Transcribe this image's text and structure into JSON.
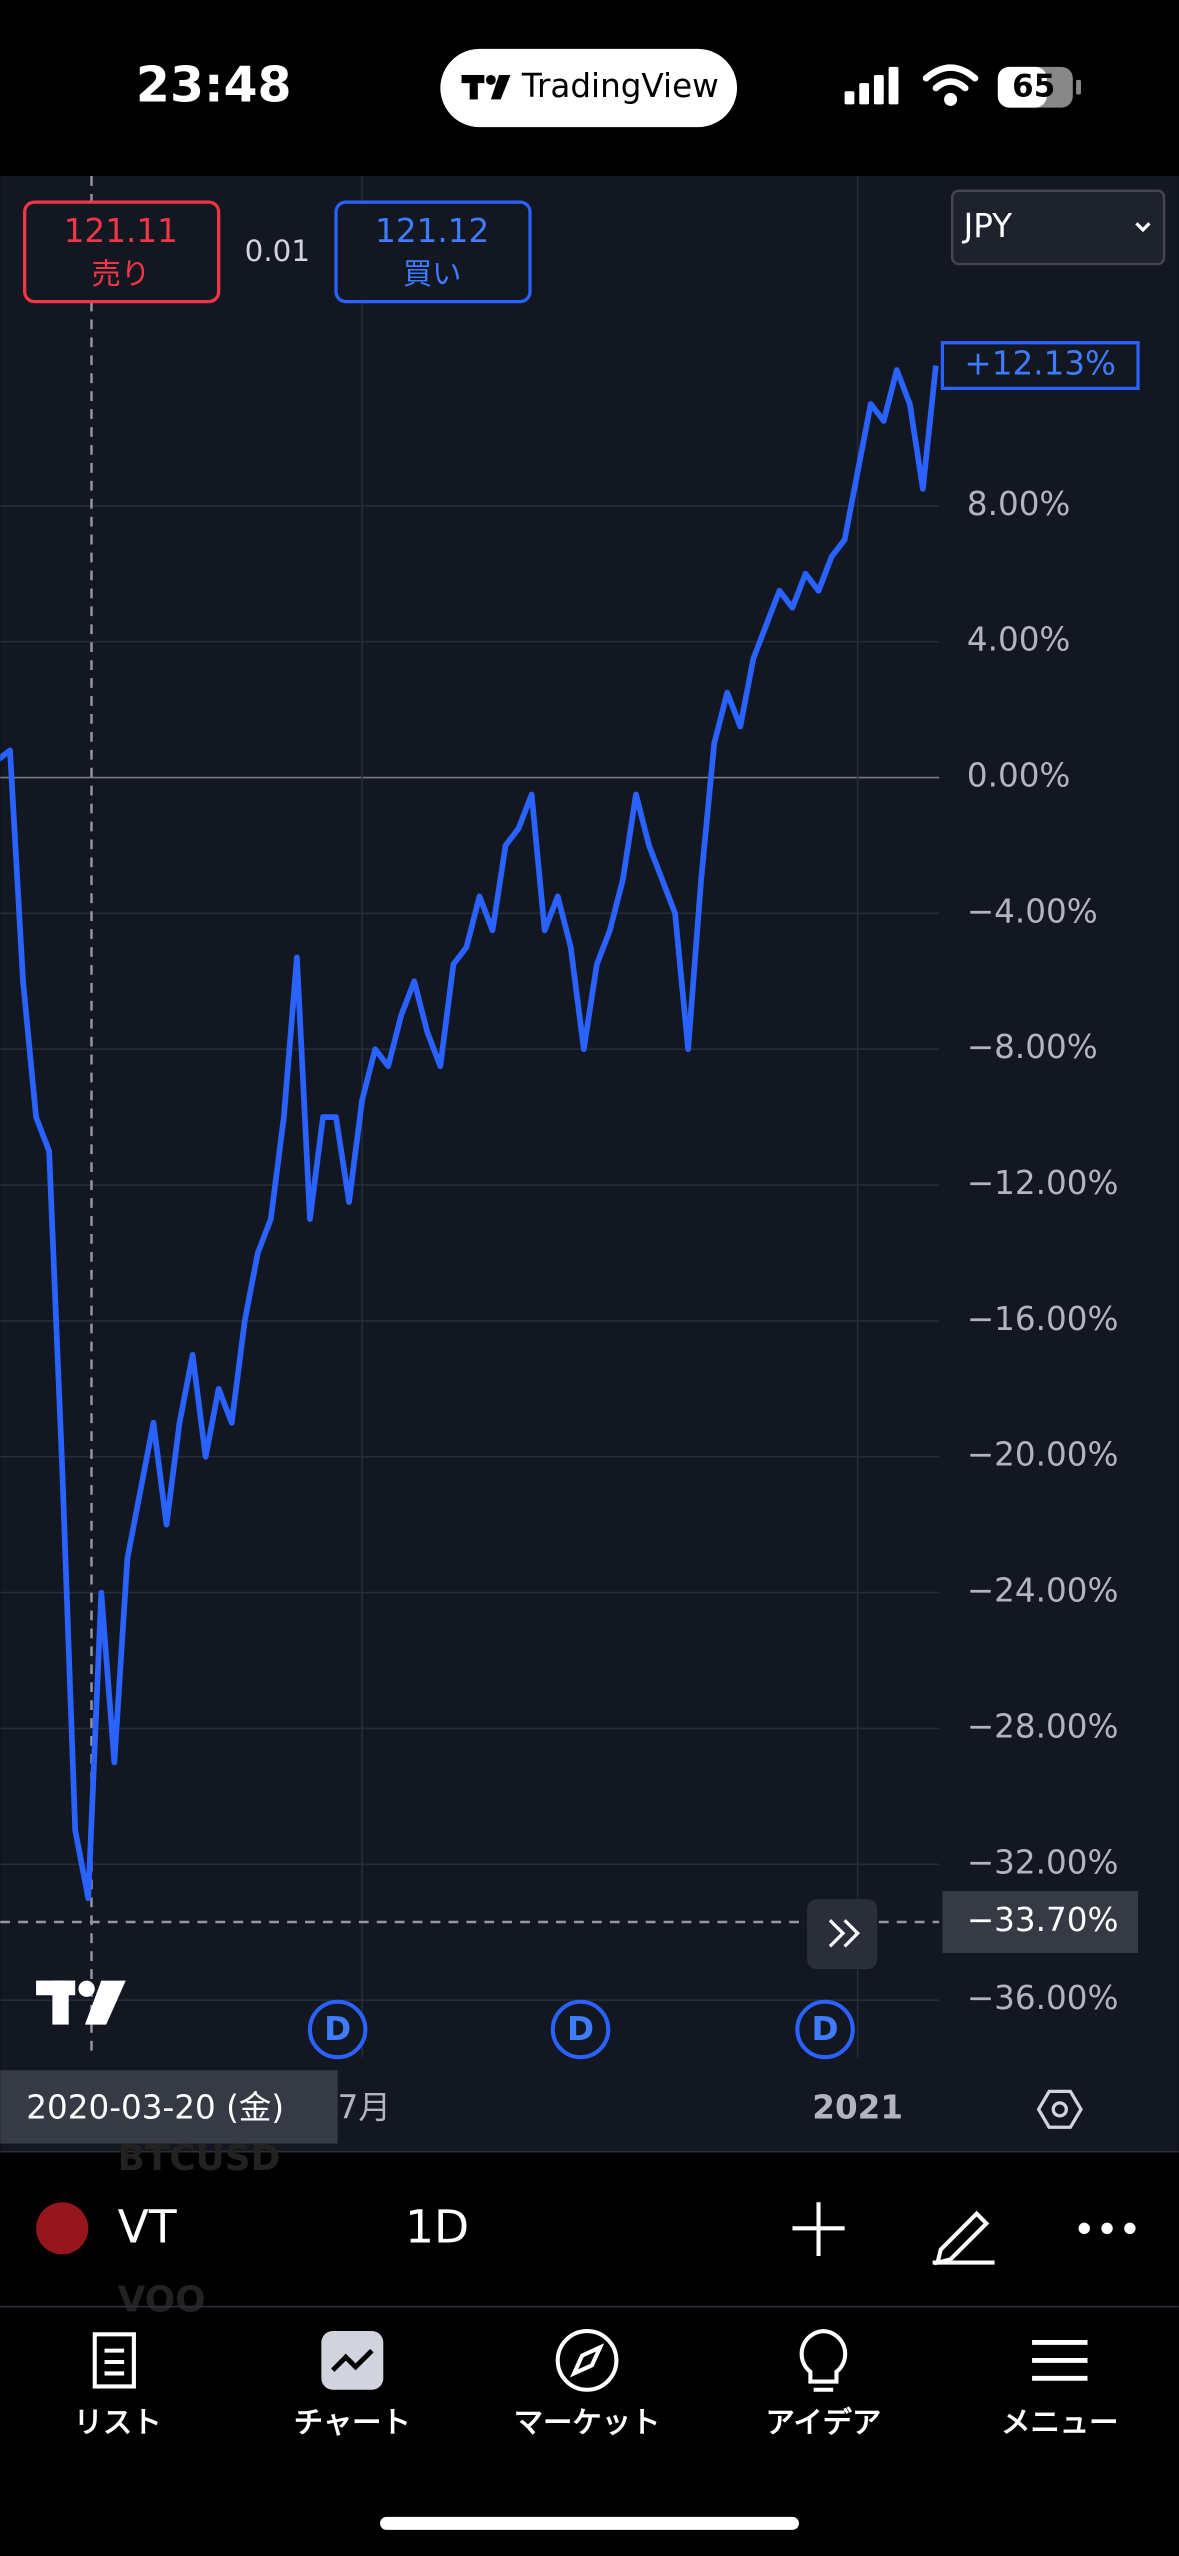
{
  "status_bar": {
    "time": "23:48",
    "app": "TradingView",
    "battery": "65"
  },
  "quote": {
    "bid": {
      "price": "121.11",
      "label": "売り"
    },
    "spread": "0.01",
    "ask": {
      "price": "121.12",
      "label": "買い"
    },
    "currency": "JPY"
  },
  "chart_data": {
    "type": "line",
    "color": "#2962ff",
    "grid": true,
    "categories": [
      null,
      null,
      null,
      null,
      null,
      null,
      null,
      null,
      null,
      null,
      null,
      null,
      null,
      null,
      null,
      null,
      null,
      null,
      null,
      null,
      null,
      null,
      null,
      null,
      null,
      null,
      null,
      null,
      "7月",
      null,
      null,
      null,
      null,
      null,
      null,
      null,
      null,
      null,
      null,
      null,
      null,
      null,
      null,
      null,
      null,
      null,
      null,
      null,
      null,
      null,
      null,
      null,
      null,
      null,
      null,
      null,
      null,
      null,
      null,
      null,
      null,
      null,
      null,
      null,
      null,
      null,
      "2021",
      null,
      null,
      null,
      null,
      null,
      null
    ],
    "values": [
      0.5,
      0.8,
      -6,
      -10,
      -11,
      -20.3,
      -31,
      -33,
      -24,
      -29,
      -23,
      -21,
      -19,
      -22,
      -19,
      -17,
      -20,
      -18,
      -19,
      -16,
      -14,
      -13,
      -10,
      -5.3,
      -13,
      -10,
      -10,
      -12.5,
      -9.5,
      -8,
      -8.5,
      -7,
      -6,
      -7.5,
      -8.5,
      -5.5,
      -5,
      -3.5,
      -4.5,
      -2,
      -1.5,
      -0.5,
      -4.5,
      -3.5,
      -5,
      -8,
      -5.5,
      -4.5,
      -3,
      -0.5,
      -2,
      -3,
      -4,
      -8,
      -3,
      1,
      2.5,
      1.5,
      3.5,
      4.5,
      5.5,
      5,
      6,
      5.5,
      6.5,
      7,
      9,
      11,
      10.5,
      12,
      11,
      8.5,
      12.13
    ],
    "ylim": [
      -37.68,
      17.71
    ],
    "yticks": [
      {
        "value": 8,
        "label": "8.00%"
      },
      {
        "value": 4,
        "label": "4.00%"
      },
      {
        "value": 0,
        "label": "0.00%"
      },
      {
        "value": -4,
        "label": "−4.00%"
      },
      {
        "value": -8,
        "label": "−8.00%"
      },
      {
        "value": -12,
        "label": "−12.00%"
      },
      {
        "value": -16,
        "label": "−16.00%"
      },
      {
        "value": -20,
        "label": "−20.00%"
      },
      {
        "value": -24,
        "label": "−24.00%"
      },
      {
        "value": -28,
        "label": "−28.00%"
      },
      {
        "value": -32,
        "label": "−32.00%"
      },
      {
        "value": -36,
        "label": "−36.00%"
      }
    ],
    "last_value_label": "+12.13%",
    "crosshair": {
      "value": -33.7,
      "label": "−33.70%",
      "date": "2020-03-20 (金)"
    },
    "dividend_markers": [
      "D",
      "D",
      "D"
    ]
  },
  "toolbar": {
    "symbol": "VT",
    "interval": "1D",
    "ghost_symbols": [
      "BTCUSD",
      "VOO"
    ]
  },
  "nav": [
    "リスト",
    "チャート",
    "マーケット",
    "アイデア",
    "メニュー"
  ]
}
